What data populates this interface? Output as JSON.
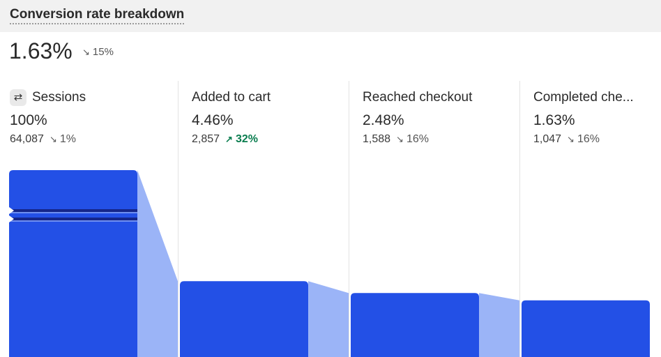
{
  "title": "Conversion rate breakdown",
  "summary": {
    "rate": "1.63%",
    "delta": "15%",
    "delta_direction": "down"
  },
  "stages": [
    {
      "name": "Sessions",
      "percent": "100%",
      "count": "64,087",
      "delta": "1%",
      "direction": "down",
      "icon": "sessions-icon"
    },
    {
      "name": "Added to cart",
      "percent": "4.46%",
      "count": "2,857",
      "delta": "32%",
      "direction": "up"
    },
    {
      "name": "Reached checkout",
      "percent": "2.48%",
      "count": "1,588",
      "delta": "16%",
      "direction": "down"
    },
    {
      "name": "Completed che...",
      "percent": "1.63%",
      "count": "1,047",
      "delta": "16%",
      "direction": "down"
    }
  ],
  "colors": {
    "bar": "#2350e6",
    "connector": "#9bb4f7",
    "up": "#0a7d4f",
    "down": "#555555"
  },
  "chart_data": {
    "type": "bar",
    "categories": [
      "Sessions",
      "Added to cart",
      "Reached checkout",
      "Completed che..."
    ],
    "values": [
      100,
      4.46,
      2.48,
      1.63
    ],
    "counts": [
      64087,
      2857,
      1588,
      1047
    ],
    "title": "Conversion rate breakdown"
  }
}
